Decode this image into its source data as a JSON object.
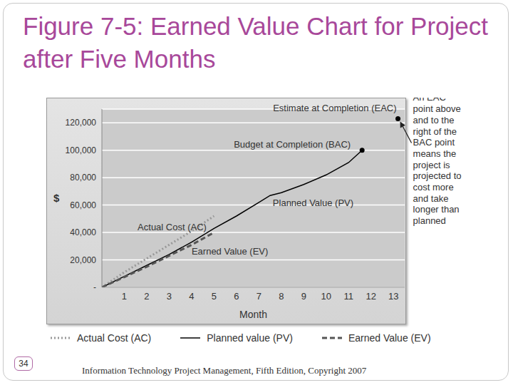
{
  "title": "Figure 7-5: Earned Value Chart for Project after Five Months",
  "chart_data": {
    "type": "line",
    "x_label": "Month",
    "y_label": "$",
    "xlim": [
      0,
      13.5
    ],
    "xticks": [
      1,
      2,
      3,
      4,
      5,
      6,
      7,
      8,
      9,
      10,
      11,
      12,
      13
    ],
    "ylim": [
      0,
      130000
    ],
    "yticks": [
      {
        "value": 0,
        "label": "-"
      },
      {
        "value": 20000,
        "label": "20,000"
      },
      {
        "value": 40000,
        "label": "40,000"
      },
      {
        "value": 60000,
        "label": "60,000"
      },
      {
        "value": 80000,
        "label": "80,000"
      },
      {
        "value": 100000,
        "label": "100,000"
      },
      {
        "value": 120000,
        "label": "120,000"
      }
    ],
    "grid": true,
    "legend": "bottom",
    "series": [
      {
        "name": "Actual Cost (AC)",
        "label": "Actual Cost (AC)",
        "color": "#999999",
        "line_style": "dotted",
        "x": [
          0,
          1,
          2,
          3,
          4,
          5
        ],
        "values": [
          0,
          11000,
          21000,
          31000,
          41000,
          52000
        ]
      },
      {
        "name": "Planned value (PV)",
        "label": "Planned Value (PV)",
        "color": "#000000",
        "line_style": "solid",
        "x": [
          0,
          1,
          2,
          3,
          4,
          5,
          6,
          7,
          7.5,
          8,
          9,
          10,
          11,
          11.6
        ],
        "values": [
          0,
          8000,
          16000,
          24000,
          33000,
          43000,
          52000,
          62000,
          67000,
          69000,
          75000,
          82000,
          91000,
          100000
        ]
      },
      {
        "name": "Earned Value (EV)",
        "label": "Earned Value (EV)",
        "color": "#555555",
        "line_style": "dashed",
        "x": [
          0,
          1,
          2,
          3,
          4,
          5
        ],
        "values": [
          0,
          7500,
          15000,
          23000,
          31000,
          40000
        ]
      }
    ],
    "points": [
      {
        "label": "Estimate at Completion (EAC)",
        "x": 13.2,
        "y": 123000,
        "color": "#000000"
      },
      {
        "label": "Budget at Completion (BAC)",
        "x": 11.6,
        "y": 100000,
        "color": "#000000"
      }
    ],
    "callout": [
      "An EAC",
      "point above",
      "and to the",
      "right of the",
      "BAC point",
      "means the",
      "project is",
      "projected to",
      "cost more",
      "and take",
      "longer than",
      "planned"
    ]
  },
  "page_number": "34",
  "footer": "Information Technology Project Management, Fifth Edition, Copyright 2007"
}
